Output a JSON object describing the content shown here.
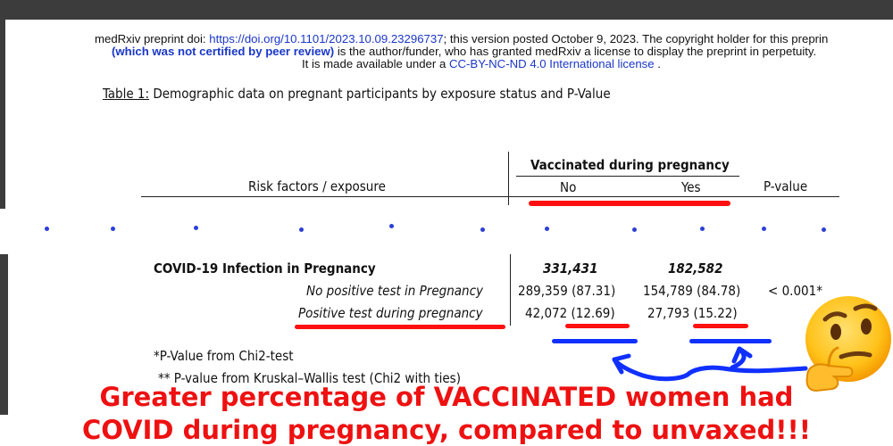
{
  "preprint_header": {
    "line1_prefix": "medRxiv preprint doi: ",
    "line1_doi": "https://doi.org/10.1101/2023.10.09.23296737",
    "line1_suffix": "; this version posted October 9, 2023. The copyright holder for this preprin",
    "line2_bold": "(which was not certified by peer review)",
    "line2_rest": " is the author/funder, who has granted medRxiv a license to display the preprint in perpetuity.",
    "line3_prefix": "It is made available under a ",
    "line3_license": "CC-BY-NC-ND 4.0 International license",
    "line3_suffix": " ."
  },
  "table": {
    "caption_label": "Table 1:",
    "caption_text": " Demographic data on pregnant participants by exposure status and P-Value",
    "group_header": "Vaccinated during pregnancy",
    "col_risk": "Risk factors / exposure",
    "col_no": "No",
    "col_yes": "Yes",
    "col_p": "P-value",
    "section_label": "COVID-19 Infection in Pregnancy",
    "section_no_total": "331,431",
    "section_yes_total": "182,582",
    "rows": [
      {
        "label": "No positive test in Pregnancy",
        "no": "289,359 (87.31)",
        "yes": "154,789 (84.78)",
        "p": "< 0.001*"
      },
      {
        "label": "Positive test during pregnancy",
        "no": "42,072 (12.69)",
        "yes": "27,793 (15.22)",
        "p": ""
      }
    ],
    "footnote1": "*P-Value from Chi2-test",
    "footnote2": "** P-value from Kruskal–Wallis test (Chi2 with ties)"
  },
  "annotation": {
    "line1": "Greater percentage of VACCINATED women had",
    "line2": "COVID during pregnancy, compared to unvaxed!!!",
    "text_color": "#ee1111",
    "underline_red": "#ff1010",
    "underline_blue": "#1030ff",
    "emoji": "thinking-face"
  }
}
